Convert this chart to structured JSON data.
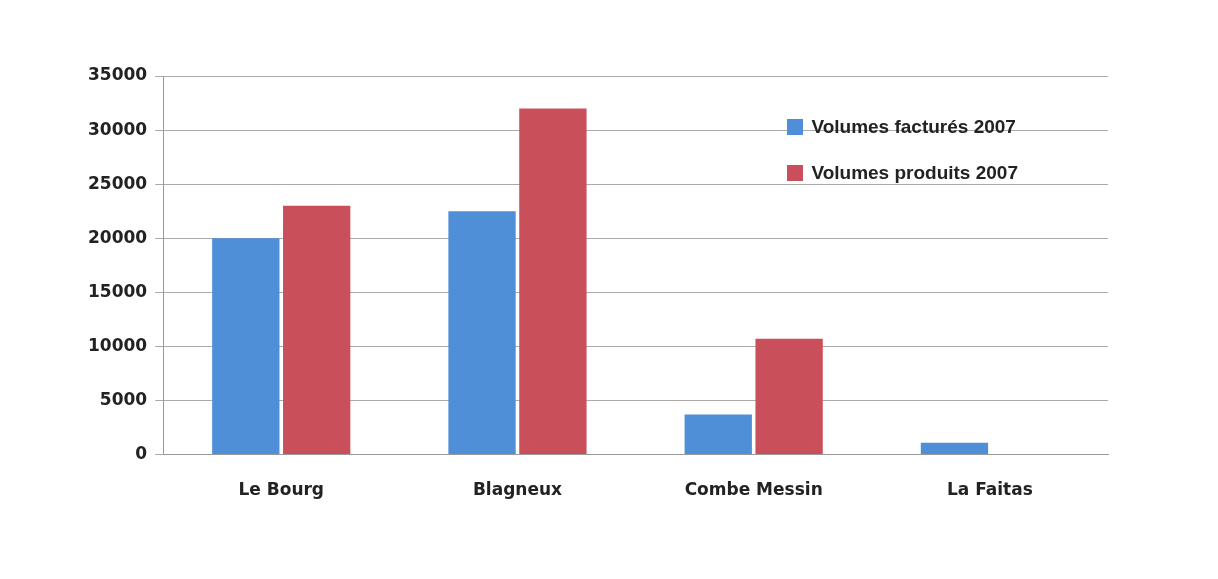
{
  "chart_data": {
    "type": "bar",
    "categories": [
      "Le Bourg",
      "Blagneux",
      "Combe Messin",
      "La Faitas"
    ],
    "series": [
      {
        "name": "Volumes facturés 2007",
        "color": "#4f8fd8",
        "values": [
          20000,
          22500,
          3700,
          1100
        ]
      },
      {
        "name": "Volumes produits 2007",
        "color": "#c9505a",
        "values": [
          23000,
          32000,
          10700,
          null
        ]
      }
    ],
    "ylim": [
      0,
      35000
    ],
    "yticks": [
      0,
      5000,
      10000,
      15000,
      20000,
      25000,
      30000,
      35000
    ],
    "grid": "y",
    "legend": "top right"
  }
}
